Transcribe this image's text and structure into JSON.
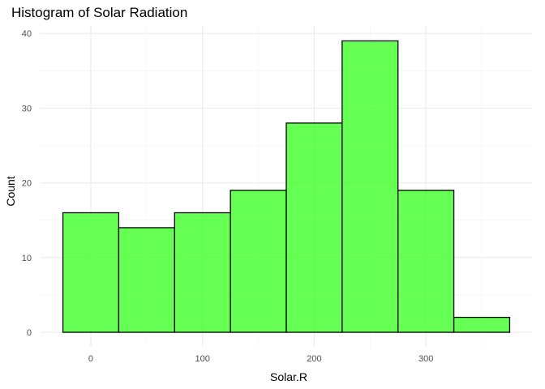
{
  "chart_data": {
    "type": "bar",
    "subtype": "histogram",
    "title": "Histogram of Solar Radiation",
    "xlabel": "Solar.R",
    "ylabel": "Count",
    "bins": [
      {
        "from": -25,
        "to": 25,
        "count": 16
      },
      {
        "from": 25,
        "to": 75,
        "count": 14
      },
      {
        "from": 75,
        "to": 125,
        "count": 16
      },
      {
        "from": 125,
        "to": 175,
        "count": 19
      },
      {
        "from": 175,
        "to": 225,
        "count": 28
      },
      {
        "from": 225,
        "to": 275,
        "count": 39
      },
      {
        "from": 275,
        "to": 325,
        "count": 19
      },
      {
        "from": 325,
        "to": 375,
        "count": 2
      }
    ],
    "xlim": [
      -45,
      395
    ],
    "ylim": [
      -1.95,
      41
    ],
    "x_ticks": [
      0,
      100,
      200,
      300
    ],
    "x_tick_labels": [
      "0",
      "100",
      "200",
      "300"
    ],
    "y_ticks": [
      0,
      10,
      20,
      30,
      40
    ],
    "y_tick_labels": [
      "0",
      "10",
      "20",
      "30",
      "40"
    ],
    "grid": true,
    "legend": "none",
    "fill_color": "#33ff1a",
    "fill_opacity": 0.75,
    "outline_color": "#000000"
  }
}
